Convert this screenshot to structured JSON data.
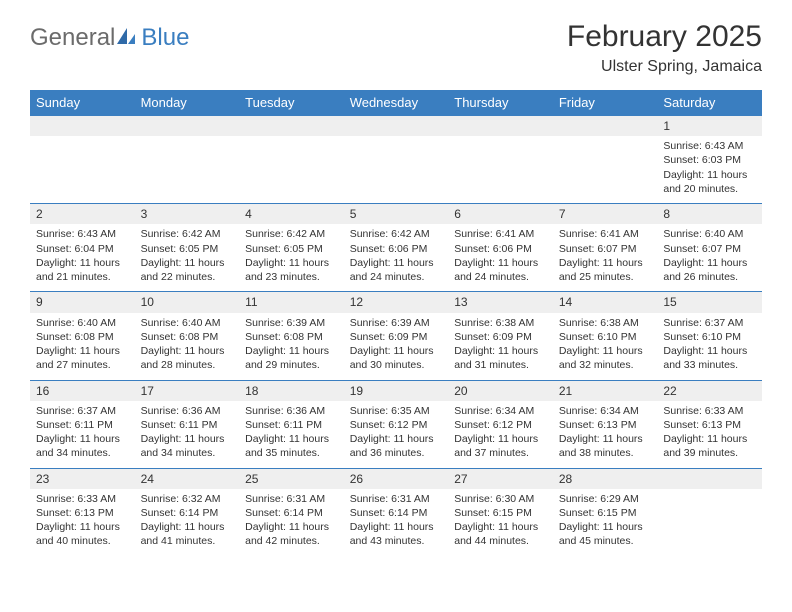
{
  "logo": {
    "word1": "General",
    "word2": "Blue"
  },
  "title": "February 2025",
  "location": "Ulster Spring, Jamaica",
  "colors": {
    "accent": "#3a7ec0",
    "band": "#efefef",
    "text": "#333333",
    "logo_gray": "#6b6b6b",
    "bg": "#ffffff"
  },
  "day_headers": [
    "Sunday",
    "Monday",
    "Tuesday",
    "Wednesday",
    "Thursday",
    "Friday",
    "Saturday"
  ],
  "weeks": [
    [
      {
        "blank": true
      },
      {
        "blank": true
      },
      {
        "blank": true
      },
      {
        "blank": true
      },
      {
        "blank": true
      },
      {
        "blank": true
      },
      {
        "n": "1",
        "sr": "Sunrise: 6:43 AM",
        "ss": "Sunset: 6:03 PM",
        "dl": "Daylight: 11 hours and 20 minutes."
      }
    ],
    [
      {
        "n": "2",
        "sr": "Sunrise: 6:43 AM",
        "ss": "Sunset: 6:04 PM",
        "dl": "Daylight: 11 hours and 21 minutes."
      },
      {
        "n": "3",
        "sr": "Sunrise: 6:42 AM",
        "ss": "Sunset: 6:05 PM",
        "dl": "Daylight: 11 hours and 22 minutes."
      },
      {
        "n": "4",
        "sr": "Sunrise: 6:42 AM",
        "ss": "Sunset: 6:05 PM",
        "dl": "Daylight: 11 hours and 23 minutes."
      },
      {
        "n": "5",
        "sr": "Sunrise: 6:42 AM",
        "ss": "Sunset: 6:06 PM",
        "dl": "Daylight: 11 hours and 24 minutes."
      },
      {
        "n": "6",
        "sr": "Sunrise: 6:41 AM",
        "ss": "Sunset: 6:06 PM",
        "dl": "Daylight: 11 hours and 24 minutes."
      },
      {
        "n": "7",
        "sr": "Sunrise: 6:41 AM",
        "ss": "Sunset: 6:07 PM",
        "dl": "Daylight: 11 hours and 25 minutes."
      },
      {
        "n": "8",
        "sr": "Sunrise: 6:40 AM",
        "ss": "Sunset: 6:07 PM",
        "dl": "Daylight: 11 hours and 26 minutes."
      }
    ],
    [
      {
        "n": "9",
        "sr": "Sunrise: 6:40 AM",
        "ss": "Sunset: 6:08 PM",
        "dl": "Daylight: 11 hours and 27 minutes."
      },
      {
        "n": "10",
        "sr": "Sunrise: 6:40 AM",
        "ss": "Sunset: 6:08 PM",
        "dl": "Daylight: 11 hours and 28 minutes."
      },
      {
        "n": "11",
        "sr": "Sunrise: 6:39 AM",
        "ss": "Sunset: 6:08 PM",
        "dl": "Daylight: 11 hours and 29 minutes."
      },
      {
        "n": "12",
        "sr": "Sunrise: 6:39 AM",
        "ss": "Sunset: 6:09 PM",
        "dl": "Daylight: 11 hours and 30 minutes."
      },
      {
        "n": "13",
        "sr": "Sunrise: 6:38 AM",
        "ss": "Sunset: 6:09 PM",
        "dl": "Daylight: 11 hours and 31 minutes."
      },
      {
        "n": "14",
        "sr": "Sunrise: 6:38 AM",
        "ss": "Sunset: 6:10 PM",
        "dl": "Daylight: 11 hours and 32 minutes."
      },
      {
        "n": "15",
        "sr": "Sunrise: 6:37 AM",
        "ss": "Sunset: 6:10 PM",
        "dl": "Daylight: 11 hours and 33 minutes."
      }
    ],
    [
      {
        "n": "16",
        "sr": "Sunrise: 6:37 AM",
        "ss": "Sunset: 6:11 PM",
        "dl": "Daylight: 11 hours and 34 minutes."
      },
      {
        "n": "17",
        "sr": "Sunrise: 6:36 AM",
        "ss": "Sunset: 6:11 PM",
        "dl": "Daylight: 11 hours and 34 minutes."
      },
      {
        "n": "18",
        "sr": "Sunrise: 6:36 AM",
        "ss": "Sunset: 6:11 PM",
        "dl": "Daylight: 11 hours and 35 minutes."
      },
      {
        "n": "19",
        "sr": "Sunrise: 6:35 AM",
        "ss": "Sunset: 6:12 PM",
        "dl": "Daylight: 11 hours and 36 minutes."
      },
      {
        "n": "20",
        "sr": "Sunrise: 6:34 AM",
        "ss": "Sunset: 6:12 PM",
        "dl": "Daylight: 11 hours and 37 minutes."
      },
      {
        "n": "21",
        "sr": "Sunrise: 6:34 AM",
        "ss": "Sunset: 6:13 PM",
        "dl": "Daylight: 11 hours and 38 minutes."
      },
      {
        "n": "22",
        "sr": "Sunrise: 6:33 AM",
        "ss": "Sunset: 6:13 PM",
        "dl": "Daylight: 11 hours and 39 minutes."
      }
    ],
    [
      {
        "n": "23",
        "sr": "Sunrise: 6:33 AM",
        "ss": "Sunset: 6:13 PM",
        "dl": "Daylight: 11 hours and 40 minutes."
      },
      {
        "n": "24",
        "sr": "Sunrise: 6:32 AM",
        "ss": "Sunset: 6:14 PM",
        "dl": "Daylight: 11 hours and 41 minutes."
      },
      {
        "n": "25",
        "sr": "Sunrise: 6:31 AM",
        "ss": "Sunset: 6:14 PM",
        "dl": "Daylight: 11 hours and 42 minutes."
      },
      {
        "n": "26",
        "sr": "Sunrise: 6:31 AM",
        "ss": "Sunset: 6:14 PM",
        "dl": "Daylight: 11 hours and 43 minutes."
      },
      {
        "n": "27",
        "sr": "Sunrise: 6:30 AM",
        "ss": "Sunset: 6:15 PM",
        "dl": "Daylight: 11 hours and 44 minutes."
      },
      {
        "n": "28",
        "sr": "Sunrise: 6:29 AM",
        "ss": "Sunset: 6:15 PM",
        "dl": "Daylight: 11 hours and 45 minutes."
      },
      {
        "blank": true
      }
    ]
  ]
}
